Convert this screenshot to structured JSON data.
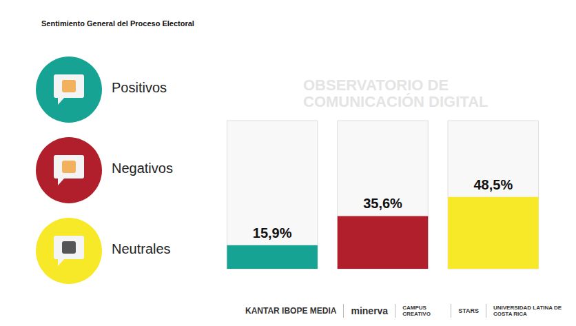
{
  "chart_data": {
    "type": "bar",
    "title": "Sentimiento General del Proceso Electoral",
    "categories": [
      "Positivos",
      "Negativos",
      "Neutrales"
    ],
    "values": [
      15.9,
      35.6,
      48.5
    ],
    "value_labels": [
      "15,9%",
      "35,6%",
      "48,5%"
    ],
    "colors": [
      "#16a394",
      "#b01f2b",
      "#f7e927"
    ],
    "ylim": [
      0,
      100
    ],
    "data_labels": true,
    "tick_labels": false,
    "grid": false,
    "legend": "left",
    "watermark": "OBSERVATORIO DE COMUNICACIÓN DIGITAL",
    "footer": [
      "KANTAR IBOPE MEDIA",
      "minerva",
      "CAMPUS CREATIVO",
      "STARS",
      "UNIVERSIDAD LATINA DE COSTA RICA"
    ]
  }
}
